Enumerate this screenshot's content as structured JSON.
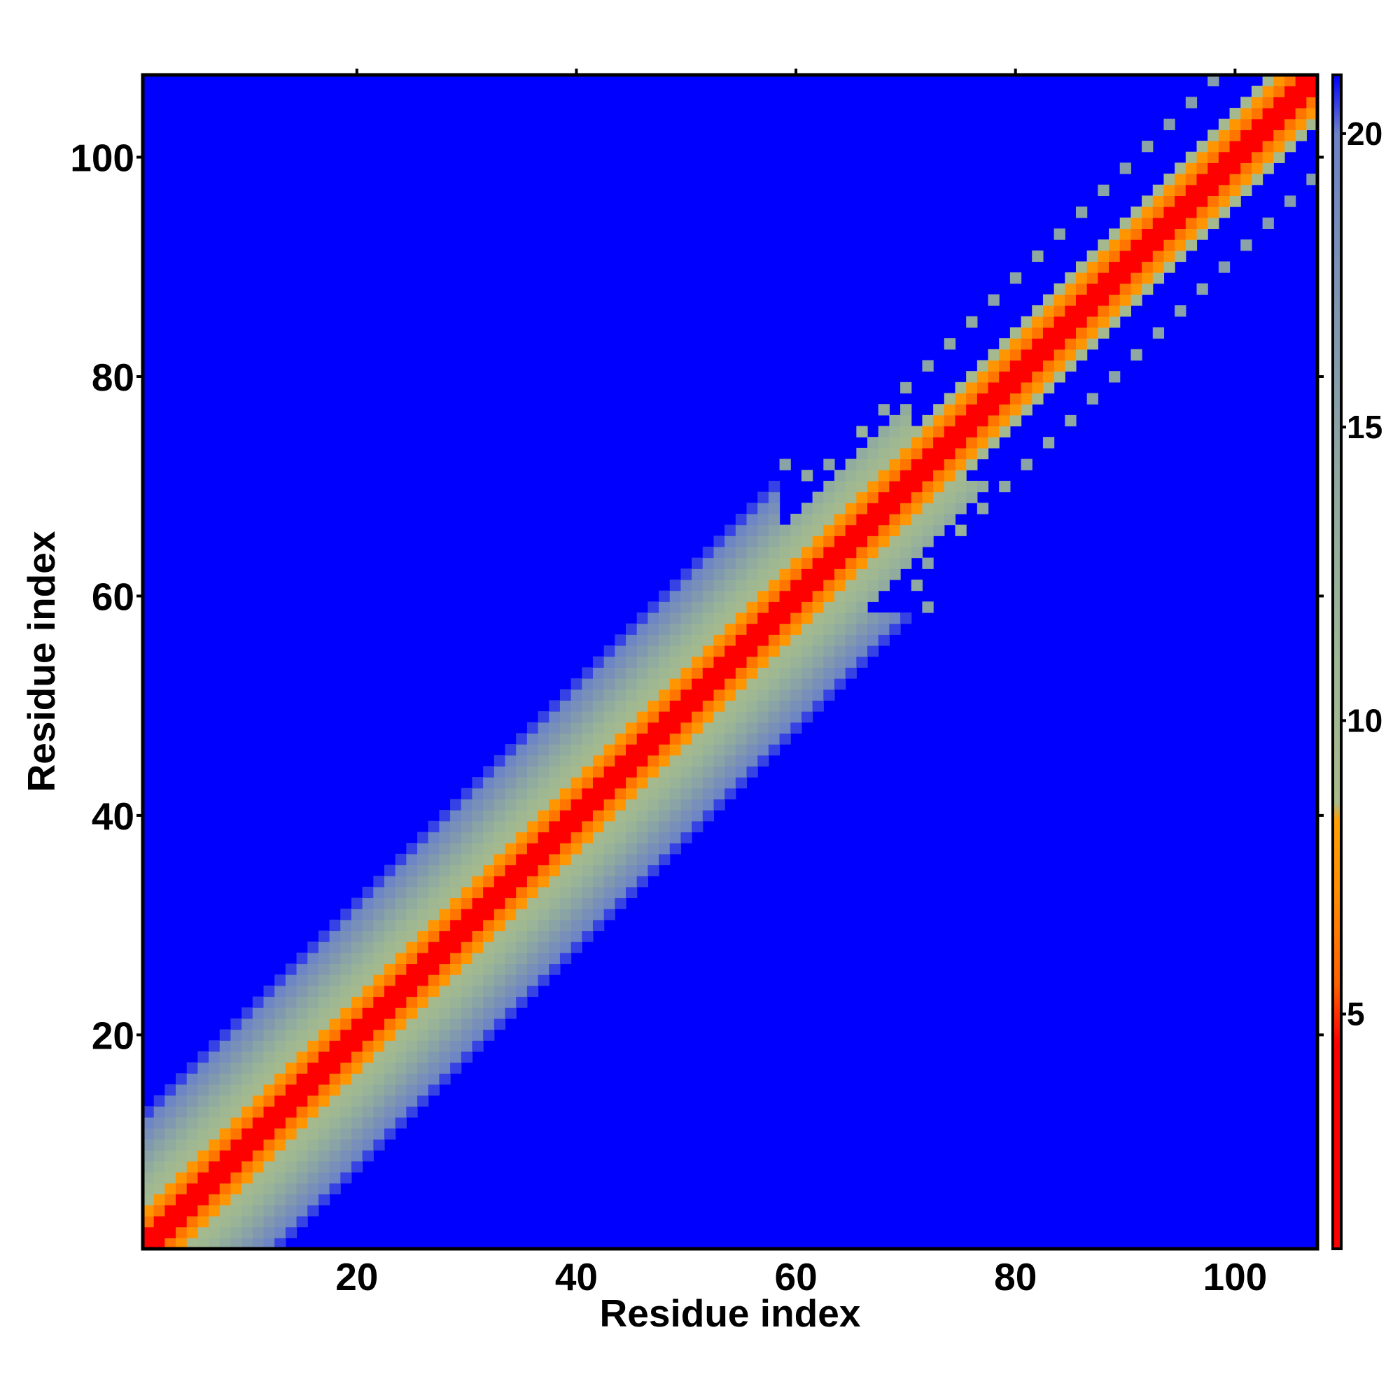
{
  "chart_data": {
    "type": "heatmap",
    "title": "",
    "xlabel": "Residue index",
    "ylabel": "Residue index",
    "xlim": [
      1,
      107
    ],
    "ylim": [
      1,
      107
    ],
    "n_residues": 107,
    "x_ticks": [
      20,
      40,
      60,
      80,
      100
    ],
    "x_tick_labels": [
      "20",
      "40",
      "60",
      "80",
      "100"
    ],
    "y_ticks": [
      20,
      40,
      60,
      80,
      100
    ],
    "y_tick_labels": [
      "20",
      "40",
      "60",
      "80",
      "100"
    ],
    "colorbar": {
      "range": [
        1,
        21
      ],
      "ticks": [
        5,
        10,
        15,
        20
      ],
      "tick_labels": [
        "5",
        "10",
        "15",
        "20"
      ],
      "stops": [
        {
          "value": 1,
          "color": "#ff0000"
        },
        {
          "value": 4.5,
          "color": "#ff0000"
        },
        {
          "value": 5.5,
          "color": "#ff6000"
        },
        {
          "value": 7,
          "color": "#ff8c00"
        },
        {
          "value": 8.3,
          "color": "#ffa000"
        },
        {
          "value": 8.6,
          "color": "#a9b98a"
        },
        {
          "value": 11,
          "color": "#9db894"
        },
        {
          "value": 14,
          "color": "#8fa9a0"
        },
        {
          "value": 17.5,
          "color": "#7b93b5"
        },
        {
          "value": 20,
          "color": "#6b83c7"
        },
        {
          "value": 21,
          "color": "#0000ff"
        }
      ]
    },
    "value_at_band_distance": {
      "0": 1,
      "1": 3.8,
      "2": 6.2,
      "3": 7.6,
      "4": 9.5,
      "5": 10.5,
      "6": 12,
      "7": 13.5,
      "8": 15,
      "9": 16.5,
      "10": 18,
      "11": 19.5,
      "12": 20.5,
      "13": 21
    },
    "region_band_width": [
      {
        "residues": [
          1,
          35
        ],
        "max_distance": 12
      },
      {
        "residues": [
          36,
          58
        ],
        "max_distance": 12
      },
      {
        "residues": [
          59,
          70
        ],
        "max_distance": 7
      },
      {
        "residues": [
          71,
          107
        ],
        "max_distance": 4
      }
    ],
    "scattered_contacts": [
      {
        "x": 59,
        "y": 72,
        "value": 15
      },
      {
        "x": 61,
        "y": 71,
        "value": 14
      },
      {
        "x": 63,
        "y": 72,
        "value": 15
      },
      {
        "x": 66,
        "y": 75,
        "value": 12
      },
      {
        "x": 68,
        "y": 77,
        "value": 14
      },
      {
        "x": 70,
        "y": 79,
        "value": 14
      },
      {
        "x": 72,
        "y": 81,
        "value": 15
      },
      {
        "x": 74,
        "y": 83,
        "value": 14
      },
      {
        "x": 76,
        "y": 85,
        "value": 14
      },
      {
        "x": 78,
        "y": 87,
        "value": 15
      },
      {
        "x": 80,
        "y": 89,
        "value": 15
      },
      {
        "x": 82,
        "y": 91,
        "value": 14
      },
      {
        "x": 84,
        "y": 93,
        "value": 15
      },
      {
        "x": 86,
        "y": 95,
        "value": 15
      },
      {
        "x": 88,
        "y": 97,
        "value": 15
      },
      {
        "x": 90,
        "y": 99,
        "value": 16
      },
      {
        "x": 92,
        "y": 101,
        "value": 15
      },
      {
        "x": 94,
        "y": 103,
        "value": 16
      },
      {
        "x": 96,
        "y": 105,
        "value": 16
      },
      {
        "x": 98,
        "y": 107,
        "value": 16
      },
      {
        "x": 72,
        "y": 59,
        "value": 15
      },
      {
        "x": 71,
        "y": 61,
        "value": 14
      },
      {
        "x": 72,
        "y": 63,
        "value": 15
      },
      {
        "x": 75,
        "y": 66,
        "value": 12
      },
      {
        "x": 77,
        "y": 68,
        "value": 14
      },
      {
        "x": 79,
        "y": 70,
        "value": 14
      },
      {
        "x": 81,
        "y": 72,
        "value": 15
      },
      {
        "x": 83,
        "y": 74,
        "value": 14
      },
      {
        "x": 85,
        "y": 76,
        "value": 14
      },
      {
        "x": 87,
        "y": 78,
        "value": 15
      },
      {
        "x": 89,
        "y": 80,
        "value": 15
      },
      {
        "x": 91,
        "y": 82,
        "value": 14
      },
      {
        "x": 93,
        "y": 84,
        "value": 15
      },
      {
        "x": 95,
        "y": 86,
        "value": 15
      },
      {
        "x": 97,
        "y": 88,
        "value": 15
      },
      {
        "x": 99,
        "y": 90,
        "value": 16
      },
      {
        "x": 101,
        "y": 92,
        "value": 15
      },
      {
        "x": 103,
        "y": 94,
        "value": 16
      },
      {
        "x": 105,
        "y": 96,
        "value": 16
      },
      {
        "x": 107,
        "y": 98,
        "value": 16
      }
    ],
    "grid": false,
    "legend": "colorbar-right"
  }
}
